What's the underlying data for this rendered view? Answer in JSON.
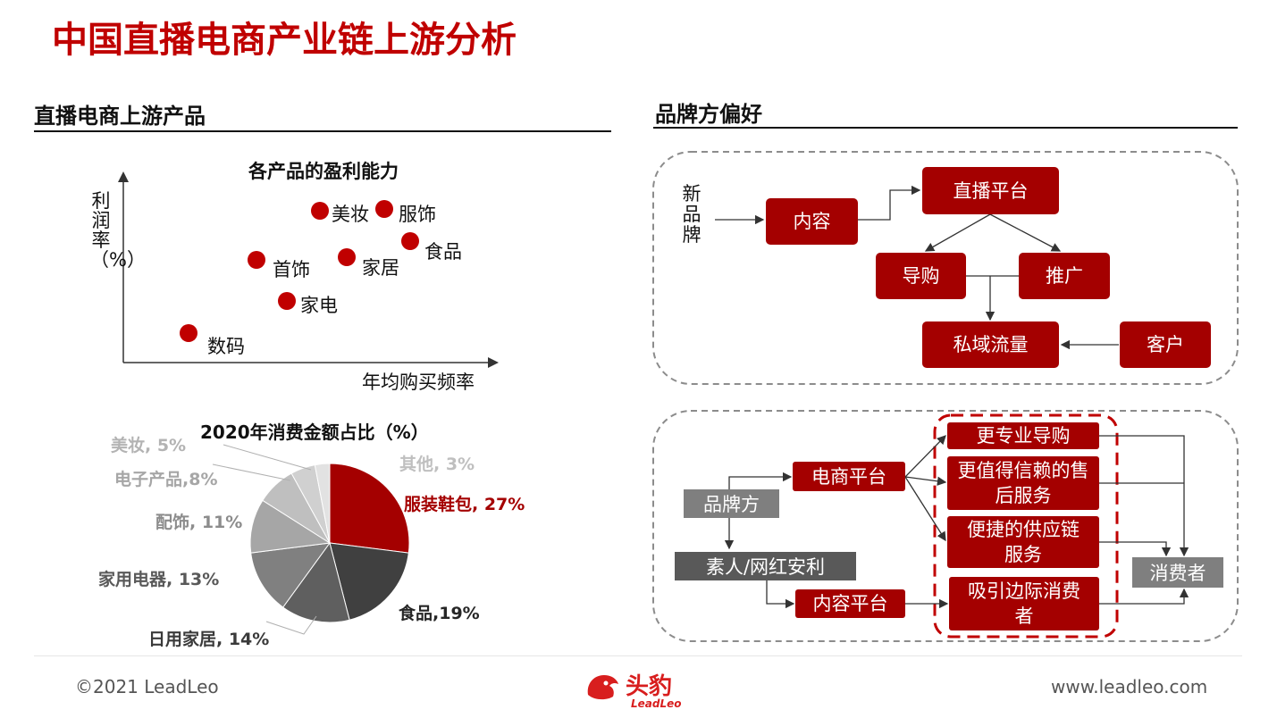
{
  "header": {
    "title": "中国直播电商产业链上游分析"
  },
  "left": {
    "section_title": "直播电商上游产品",
    "scatter": {
      "title": "各产品的盈利能力",
      "ylabel": "利润率（%）",
      "xlabel": "年均购买频率",
      "points": [
        {
          "label": "美妆"
        },
        {
          "label": "服饰"
        },
        {
          "label": "食品"
        },
        {
          "label": "首饰"
        },
        {
          "label": "家居"
        },
        {
          "label": "家电"
        },
        {
          "label": "数码"
        }
      ]
    }
  },
  "chart_data": [
    {
      "type": "scatter",
      "title": "各产品的盈利能力",
      "xlabel": "年均购买频率",
      "ylabel": "利润率（%）",
      "note": "qualitative axes without ticks; values are relative positions 0-100",
      "points": [
        {
          "label": "美妆",
          "x": 31,
          "y": 85
        },
        {
          "label": "服饰",
          "x": 40,
          "y": 86
        },
        {
          "label": "食品",
          "x": 49,
          "y": 69
        },
        {
          "label": "首饰",
          "x": 22,
          "y": 58
        },
        {
          "label": "家居",
          "x": 38,
          "y": 59
        },
        {
          "label": "家电",
          "x": 28,
          "y": 37
        },
        {
          "label": "数码",
          "x": 12,
          "y": 16
        }
      ]
    },
    {
      "type": "pie",
      "title": "2020年消费金额占比（%）",
      "slices": [
        {
          "name": "服装鞋包",
          "value": 27,
          "label": "服装鞋包, 27%",
          "color": "#a40000"
        },
        {
          "name": "食品",
          "value": 19,
          "label": "食品,19%",
          "color": "#404040"
        },
        {
          "name": "日用家居",
          "value": 14,
          "label": "日用家居, 14%",
          "color": "#5f5f5f"
        },
        {
          "name": "家用电器",
          "value": 13,
          "label": "家用电器, 13%",
          "color": "#808080"
        },
        {
          "name": "配饰",
          "value": 11,
          "label": "配饰, 11%",
          "color": "#a6a6a6"
        },
        {
          "name": "电子产品",
          "value": 8,
          "label": "电子产品,8%",
          "color": "#bfbfbf"
        },
        {
          "name": "美妆",
          "value": 5,
          "label": "美妆, 5%",
          "color": "#d0d0d0"
        },
        {
          "name": "其他",
          "value": 3,
          "label": "其他, 3%",
          "color": "#e2e2e2"
        }
      ]
    }
  ],
  "right": {
    "section_title": "品牌方偏好",
    "flow1": {
      "source": "新品牌",
      "content": "内容",
      "platform": "直播平台",
      "guide": "导购",
      "promo": "推广",
      "private": "私域流量",
      "customer": "客户"
    },
    "flow2": {
      "brand": "品牌方",
      "ecom": "电商平台",
      "kol": "素人/网红安利",
      "content_platform": "内容平台",
      "pro": "更专业导购",
      "trust": "更值得信赖的售后服务",
      "supply": "便捷的供应链服务",
      "marginal": "吸引边际消费者",
      "consumer": "消费者"
    }
  },
  "footer": {
    "copyright": "©2021 LeadLeo",
    "logo_cn": "头豹",
    "logo_en": "LeadLeo",
    "url": "www.leadleo.com"
  },
  "colors": {
    "accent": "#c00000",
    "box": "#a40000",
    "grey": "#7f7f7f"
  }
}
